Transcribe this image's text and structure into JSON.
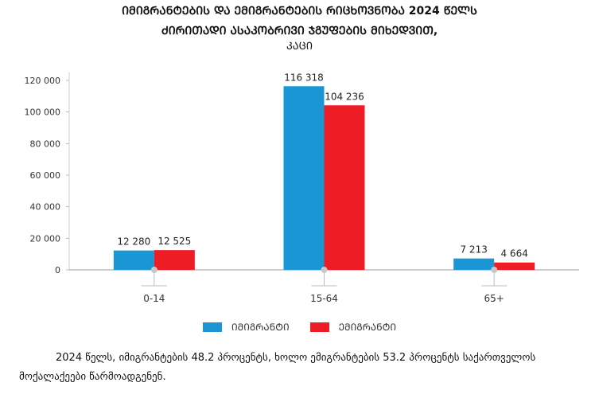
{
  "title_line1": "ᲘᲛᲘᲒᲠᲐᲜᲢᲔᲑᲘᲡ ᲓᲐ ᲔᲛᲘᲒᲠᲐᲜᲢᲔᲑᲘᲡ ᲠᲘᲪᲮᲝᲕᲜᲝᲑᲐ 2024 ᲬᲔᲚᲡ",
  "title_line2": "ᲫᲘᲠᲘᲗᲐᲓᲘ ᲐᲡᲐᲙᲝᲑᲠᲘᲕᲘ ᲯᲒᲣᲤᲔᲑᲘᲡ ᲛᲘᲮᲔᲓᲕᲘᲗ,",
  "subtitle": "ᲙᲐᲪᲘ",
  "legend": {
    "immigrants": "ᲘᲛᲘᲒᲠᲐᲜᲢᲘ",
    "emigrants": "ᲔᲛᲘᲒᲠᲐᲜᲢᲘ"
  },
  "colors": {
    "immigrants": "#1a96d4",
    "emigrants": "#ee1c25"
  },
  "note": "2024 წელს, იმიგრანტების 48.2 პროცენტს, ხოლო ემიგრანტების 53.2 პროცენტს საქართველოს მოქალაქეები წარმოადგენენ.",
  "chart_data": {
    "type": "bar",
    "categories": [
      "0-14",
      "15-64",
      "65+"
    ],
    "series": [
      {
        "name": "ᲘᲛᲘᲒᲠᲐᲜᲢᲘ",
        "values": [
          12280,
          116318,
          7213
        ],
        "labels": [
          "12 280",
          "116 318",
          "7 213"
        ]
      },
      {
        "name": "ᲔᲛᲘᲒᲠᲐᲜᲢᲘ",
        "values": [
          12525,
          104236,
          4664
        ],
        "labels": [
          "12 525",
          "104 236",
          "4 664"
        ]
      }
    ],
    "ylim": [
      0,
      120000
    ],
    "yticks": [
      0,
      20000,
      40000,
      60000,
      80000,
      100000,
      120000
    ],
    "ytick_labels": [
      "0",
      "20 000",
      "40 000",
      "60 000",
      "80 000",
      "100 000",
      "120 000"
    ],
    "legend_position": "bottom"
  }
}
